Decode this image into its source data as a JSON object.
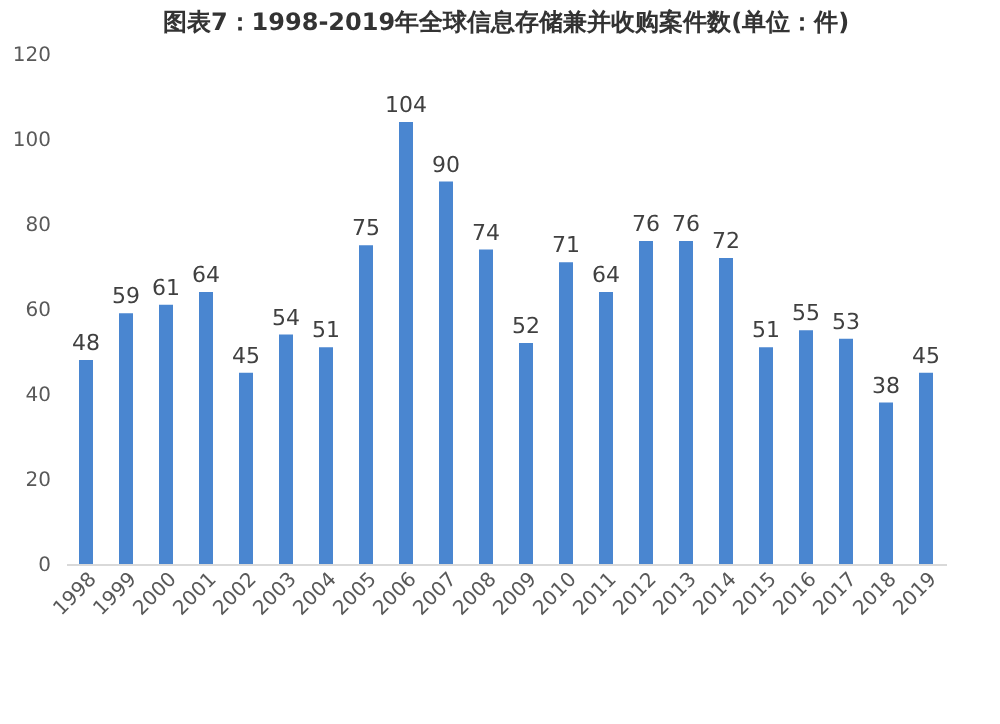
{
  "chart_data": {
    "type": "bar",
    "title": "图表7：1998-2019年全球信息存储兼并收购案件数(单位：件)",
    "categories": [
      "1998",
      "1999",
      "2000",
      "2001",
      "2002",
      "2003",
      "2004",
      "2005",
      "2006",
      "2007",
      "2008",
      "2009",
      "2010",
      "2011",
      "2012",
      "2013",
      "2014",
      "2015",
      "2016",
      "2017",
      "2018",
      "2019"
    ],
    "values": [
      48,
      59,
      61,
      64,
      45,
      54,
      51,
      75,
      104,
      90,
      74,
      52,
      71,
      64,
      76,
      76,
      72,
      51,
      55,
      53,
      38,
      45
    ],
    "color": "#4a86d0",
    "ylim": [
      0,
      120
    ],
    "yticks": [
      0,
      20,
      40,
      60,
      80,
      100,
      120
    ],
    "grid": false,
    "data_labels": true
  }
}
